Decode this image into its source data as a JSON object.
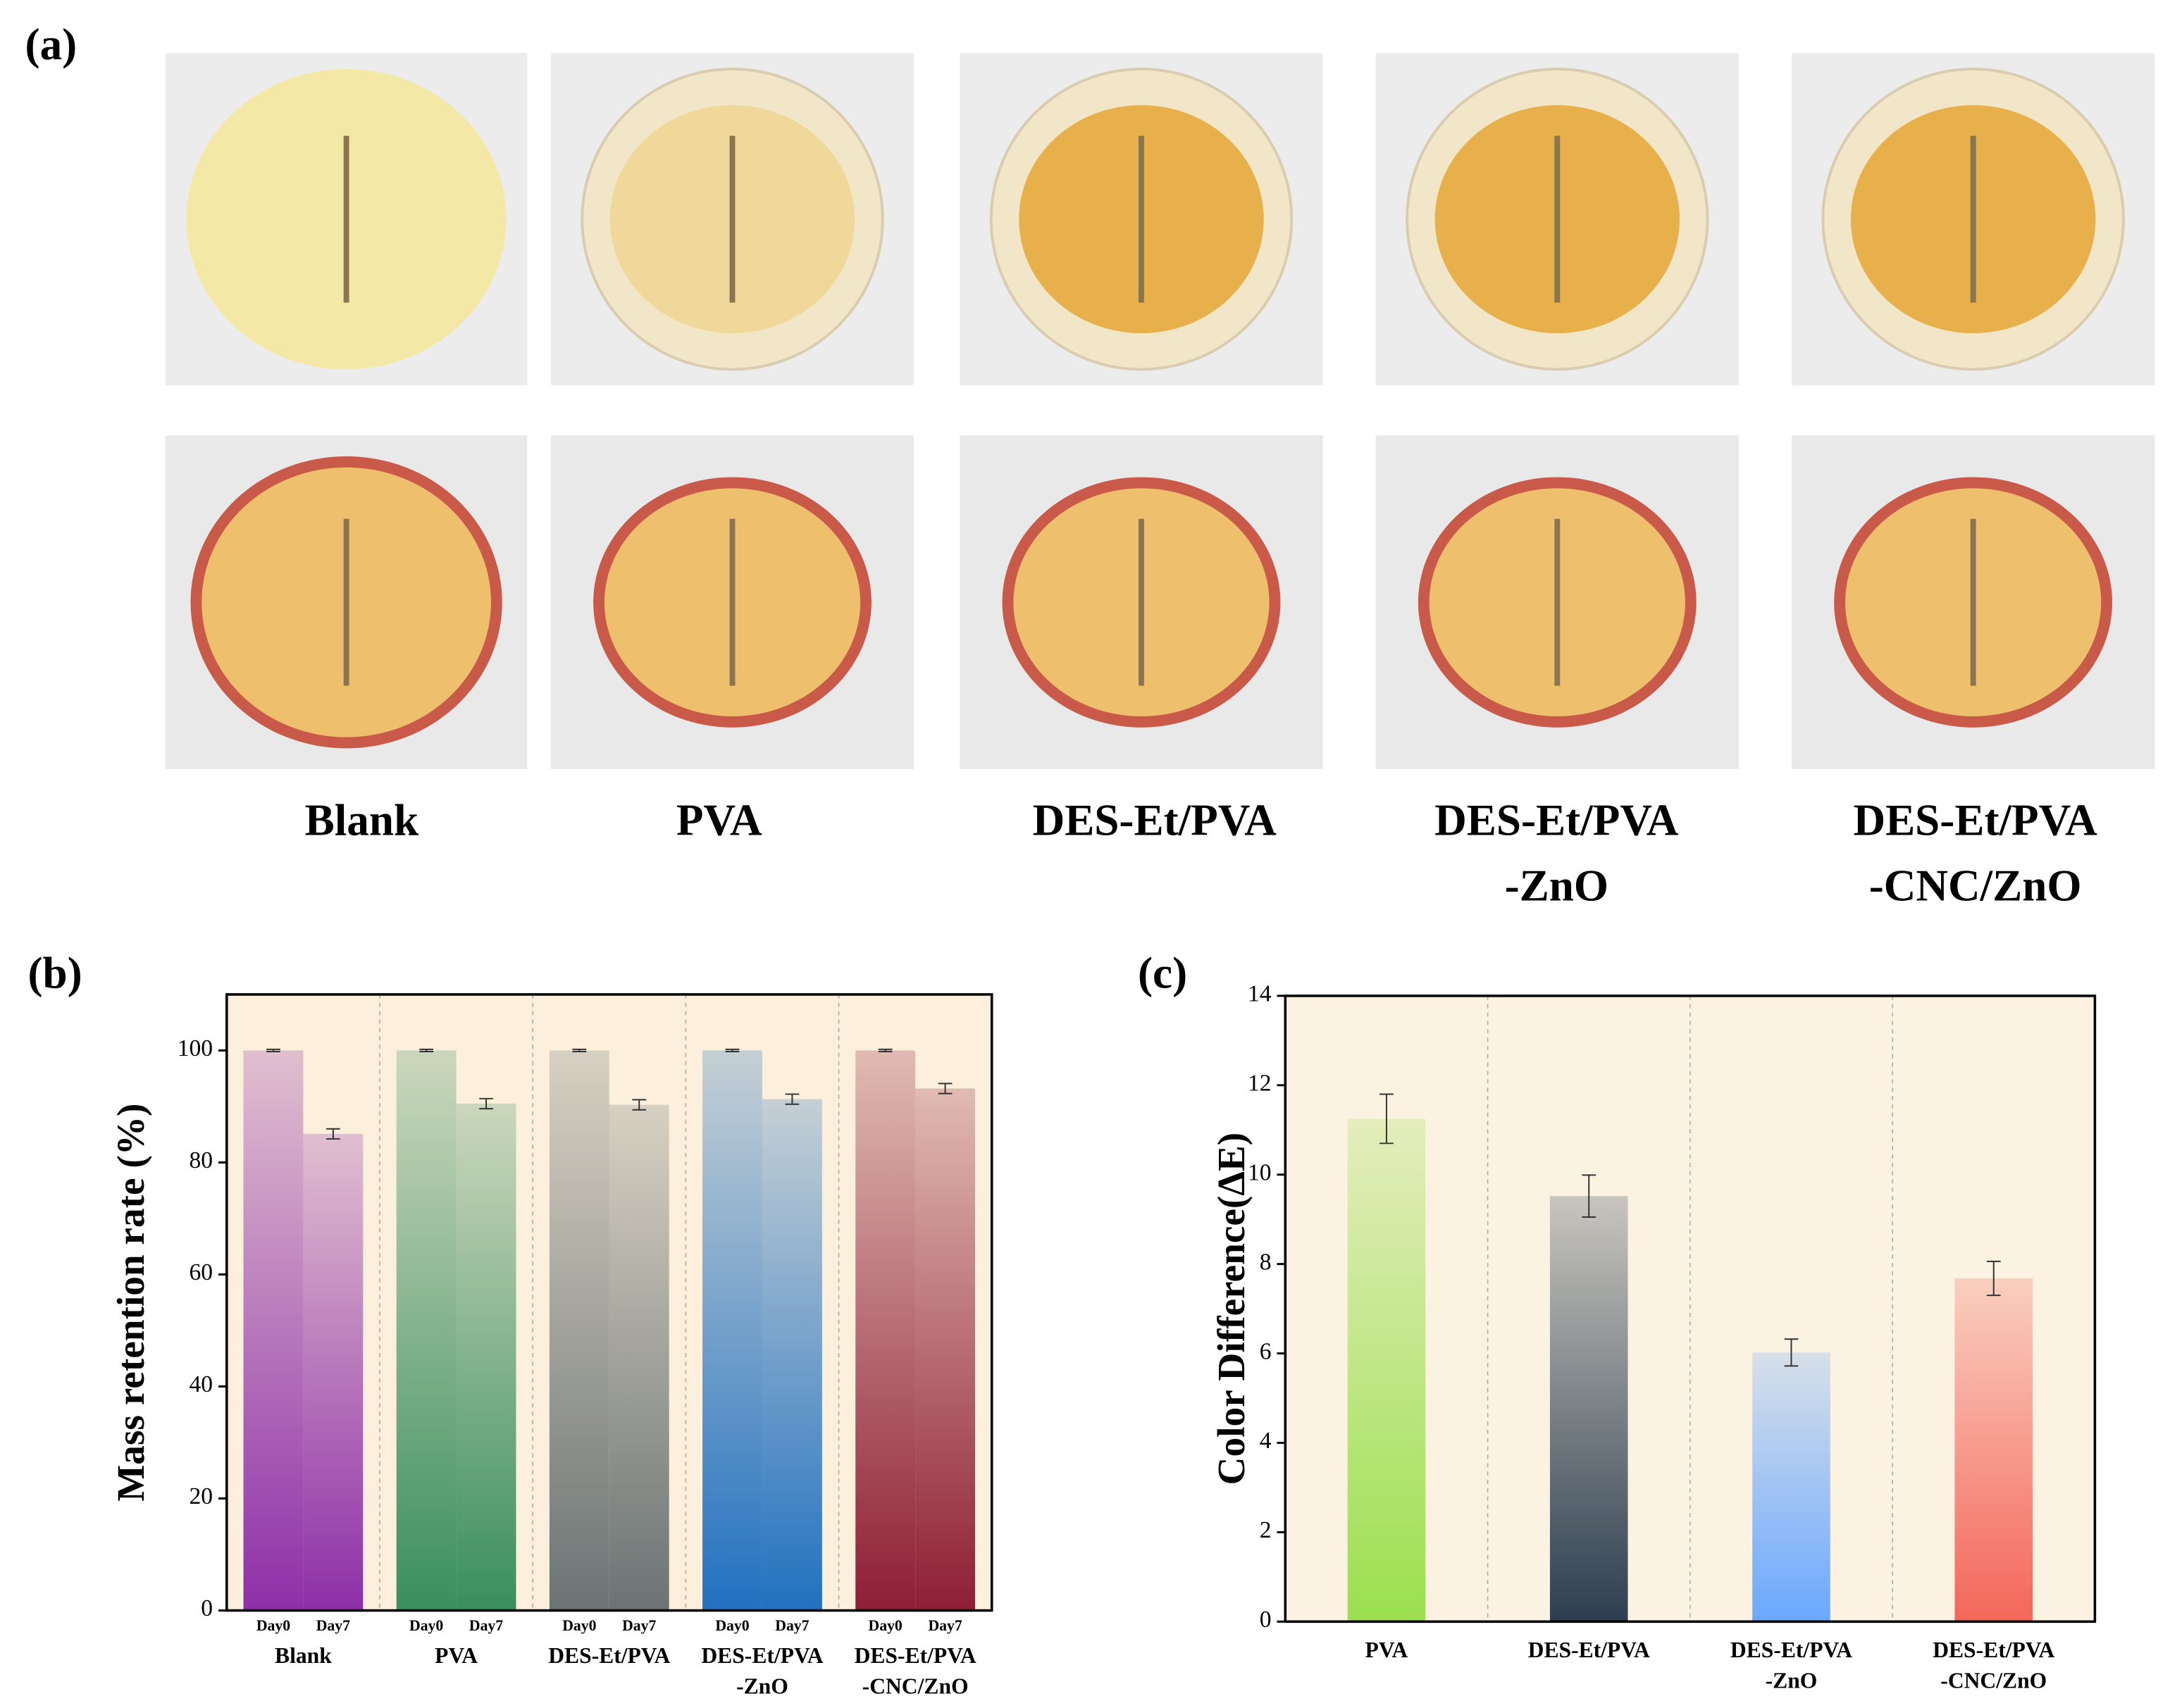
{
  "figure": {
    "panel_labels": [
      "(a)",
      "(b)",
      "(c)"
    ],
    "photo_captions": [
      [
        "Blank"
      ],
      [
        "PVA"
      ],
      [
        "DES-Et/PVA"
      ],
      [
        "DES-Et/PVA",
        "-ZnO"
      ],
      [
        "DES-Et/PVA",
        "-CNC/ZnO"
      ]
    ]
  },
  "chart_data": [
    {
      "type": "bar",
      "ylabel": "Mass retention rate (%)",
      "categories": [
        [
          "Blank"
        ],
        [
          "PVA"
        ],
        [
          "DES-Et/PVA"
        ],
        [
          "DES-Et/PVA",
          "-ZnO"
        ],
        [
          "DES-Et/PVA",
          "-CNC/ZnO"
        ]
      ],
      "category_colors": [
        "#8e2fa8",
        "#3a8f5c",
        "#6b7474",
        "#2171c0",
        "#8e1e35"
      ],
      "series": [
        {
          "name": "Day0",
          "values": [
            100,
            100,
            100,
            100,
            100
          ],
          "errors": [
            0.2,
            0.2,
            0.2,
            0.2,
            0.2
          ]
        },
        {
          "name": "Day7",
          "values": [
            85.1,
            90.5,
            90.3,
            91.3,
            93.2
          ],
          "errors": [
            0.9,
            0.9,
            0.9,
            0.9,
            0.9
          ]
        }
      ],
      "ylim": [
        0,
        110
      ],
      "yticks": [
        0,
        20,
        40,
        60,
        80,
        100
      ],
      "background": "#fcefdc"
    },
    {
      "type": "bar",
      "ylabel": "Color Difference(ΔE)",
      "categories": [
        [
          "PVA"
        ],
        [
          "DES-Et/PVA"
        ],
        [
          "DES-Et/PVA",
          "-ZnO"
        ],
        [
          "DES-Et/PVA",
          "-CNC/ZnO"
        ]
      ],
      "category_colors": [
        "#9be04e",
        "#2c3e50",
        "#6aa8ff",
        "#f4665a"
      ],
      "values": [
        11.25,
        9.52,
        6.02,
        7.68
      ],
      "errors": [
        0.55,
        0.47,
        0.3,
        0.38
      ],
      "ylim": [
        0,
        14
      ],
      "yticks": [
        0,
        2,
        4,
        6,
        8,
        10,
        12,
        14
      ],
      "background": "#fcf2e2"
    }
  ]
}
